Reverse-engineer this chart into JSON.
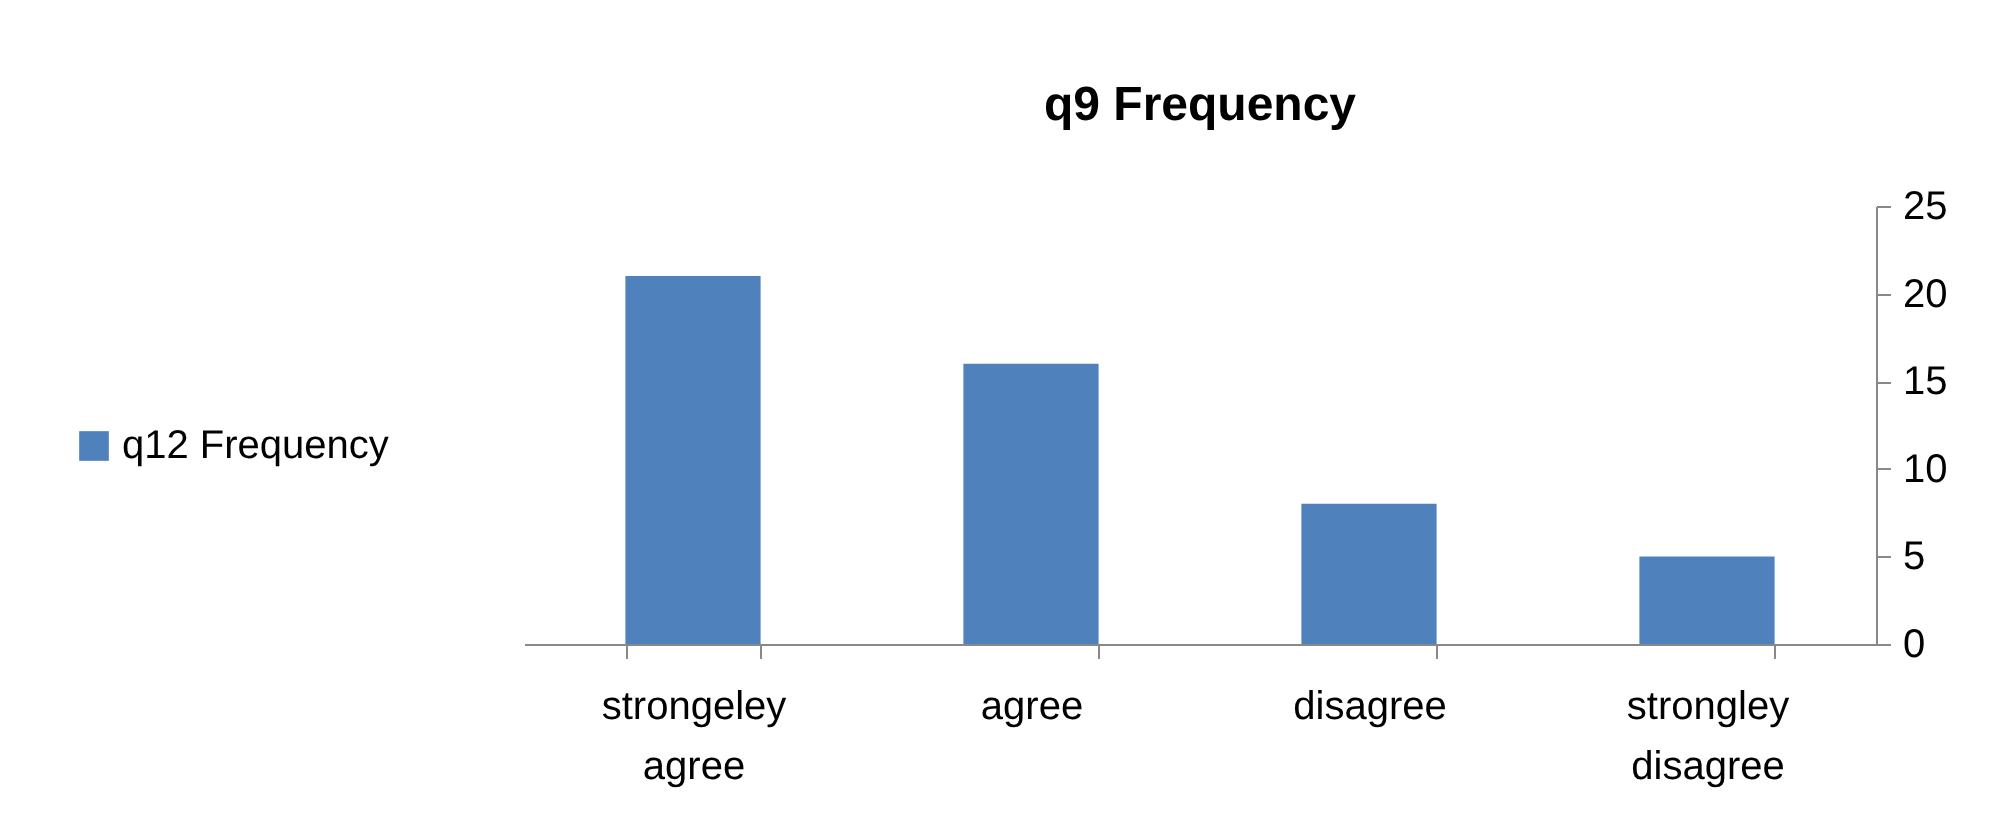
{
  "chart_data": {
    "type": "bar",
    "title": "q9 Frequency",
    "categories": [
      "strongeley agree",
      "agree",
      "disagree",
      "strongley disagree"
    ],
    "series": [
      {
        "name": "q12 Frequency",
        "color": "#4f81bd",
        "values": [
          21,
          16,
          8,
          5
        ]
      }
    ],
    "ylim": [
      0,
      25
    ],
    "yticks": [
      0,
      5,
      10,
      15,
      20,
      25
    ],
    "grid": false,
    "legend": "left"
  }
}
